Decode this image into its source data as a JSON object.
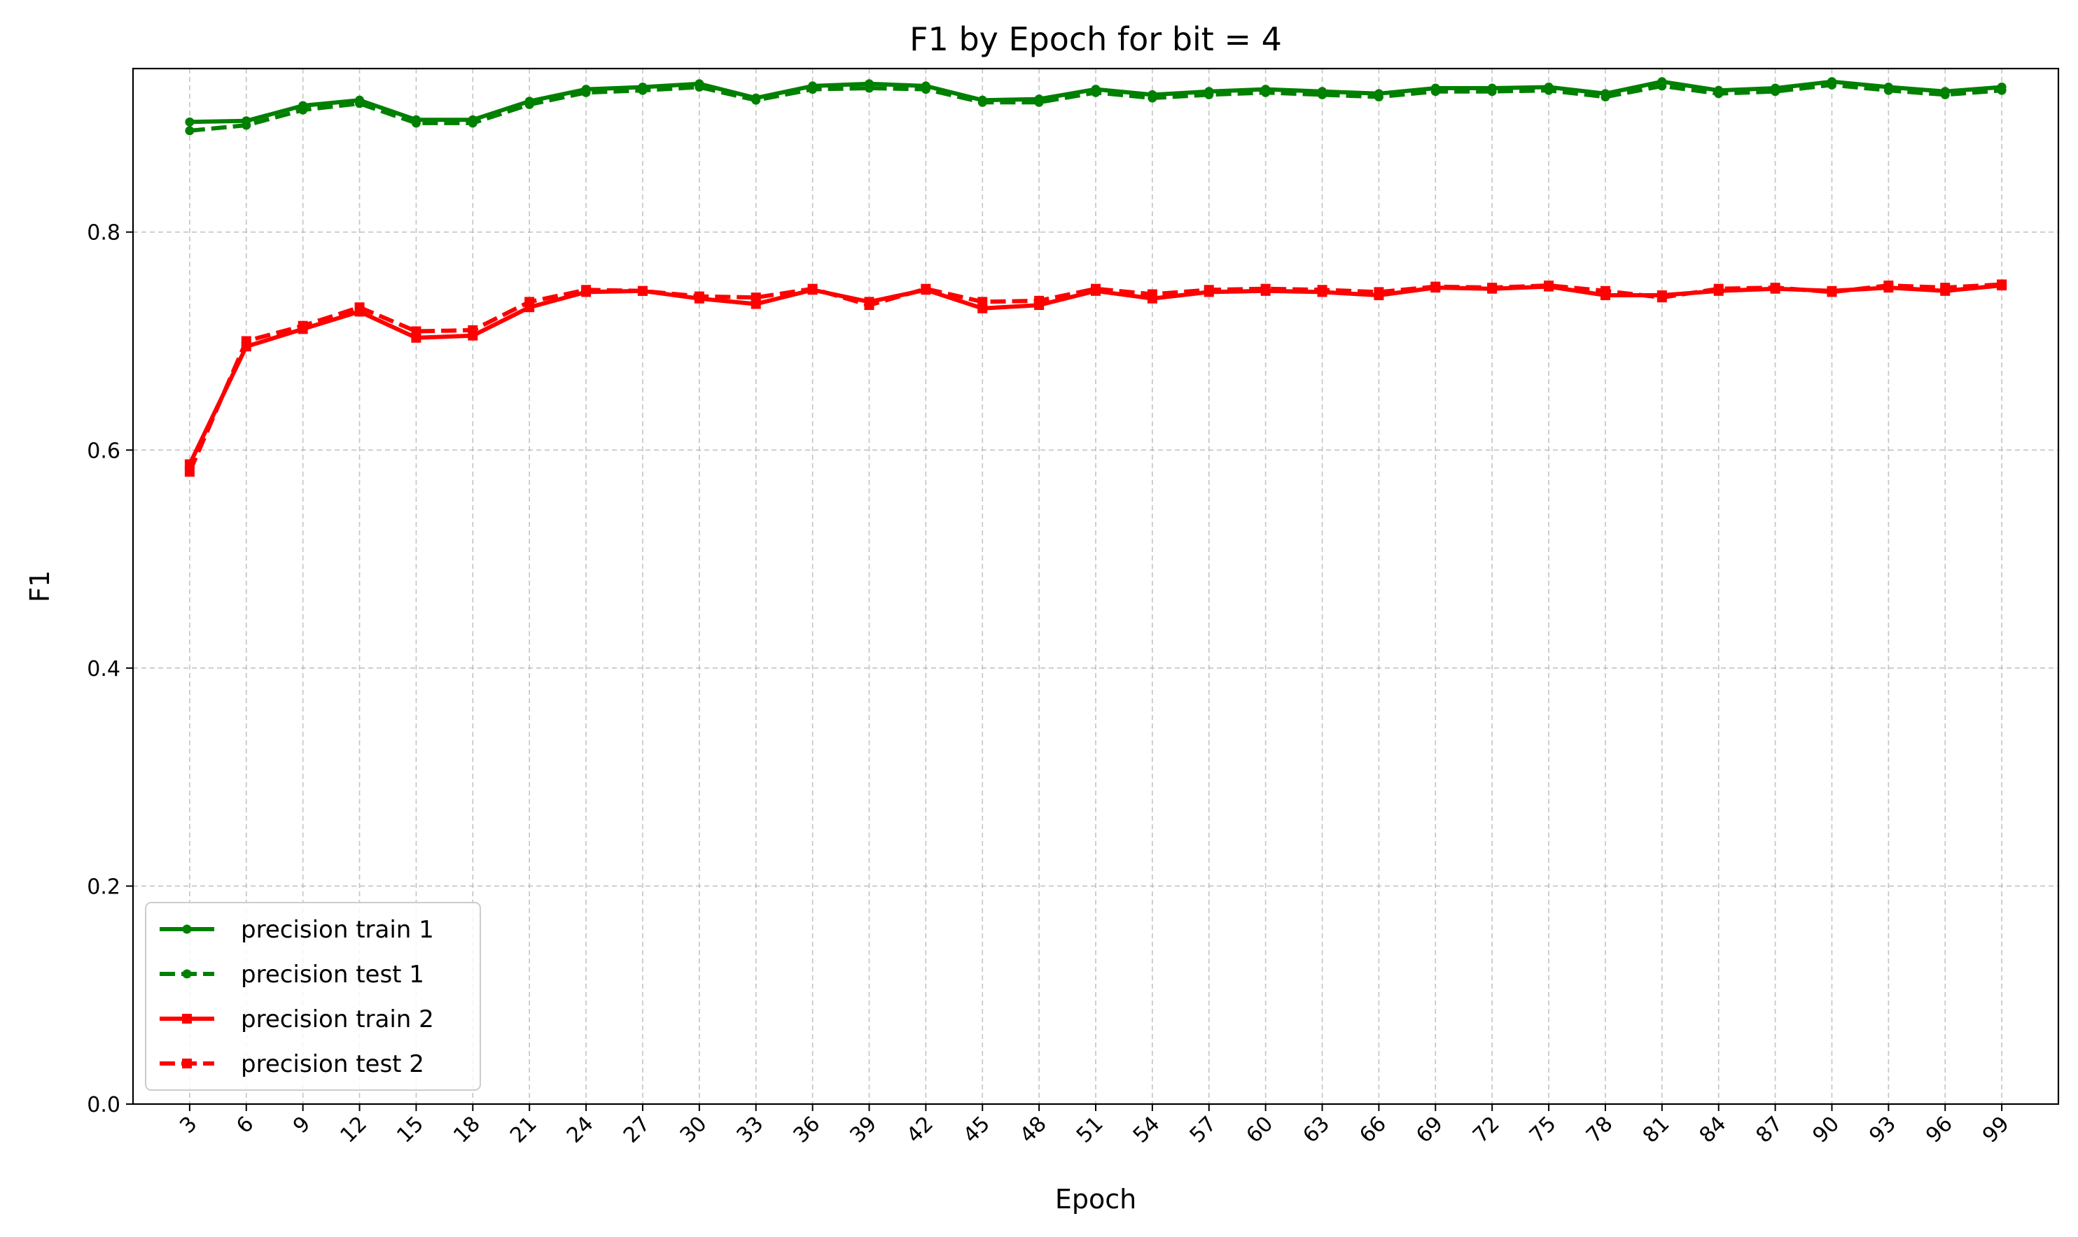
{
  "chart_data": {
    "type": "line",
    "title": "F1 by Epoch for bit = 4",
    "xlabel": "Epoch",
    "ylabel": "F1",
    "ylim": [
      0,
      0.95
    ],
    "yticks": [
      "0.0",
      "0.2",
      "0.4",
      "0.6",
      "0.8"
    ],
    "grid": true,
    "legend_position": "lower-left",
    "x": [
      3,
      6,
      9,
      12,
      15,
      18,
      21,
      24,
      27,
      30,
      33,
      36,
      39,
      42,
      45,
      48,
      51,
      54,
      57,
      60,
      63,
      66,
      69,
      72,
      75,
      78,
      81,
      84,
      87,
      90,
      93,
      96,
      99
    ],
    "series": [
      {
        "name": "precision train 1",
        "color": "#008000",
        "dash": "solid",
        "marker": "circle",
        "values": [
          0.901,
          0.902,
          0.916,
          0.921,
          0.903,
          0.903,
          0.92,
          0.931,
          0.933,
          0.936,
          0.923,
          0.934,
          0.936,
          0.934,
          0.921,
          0.922,
          0.931,
          0.926,
          0.929,
          0.931,
          0.929,
          0.927,
          0.932,
          0.932,
          0.933,
          0.927,
          0.938,
          0.93,
          0.932,
          0.938,
          0.933,
          0.929,
          0.933
        ]
      },
      {
        "name": "precision test 1",
        "color": "#008000",
        "dash": "dashed",
        "marker": "circle",
        "values": [
          0.893,
          0.898,
          0.912,
          0.918,
          0.9,
          0.9,
          0.917,
          0.928,
          0.93,
          0.933,
          0.921,
          0.931,
          0.932,
          0.931,
          0.919,
          0.919,
          0.928,
          0.923,
          0.926,
          0.928,
          0.926,
          0.924,
          0.929,
          0.929,
          0.93,
          0.924,
          0.934,
          0.927,
          0.929,
          0.935,
          0.93,
          0.926,
          0.93
        ]
      },
      {
        "name": "precision train 2",
        "color": "#ff0000",
        "dash": "solid",
        "marker": "square",
        "values": [
          0.587,
          0.695,
          0.711,
          0.727,
          0.703,
          0.705,
          0.731,
          0.745,
          0.746,
          0.739,
          0.734,
          0.747,
          0.736,
          0.747,
          0.73,
          0.733,
          0.746,
          0.739,
          0.745,
          0.746,
          0.745,
          0.742,
          0.749,
          0.748,
          0.75,
          0.742,
          0.742,
          0.746,
          0.748,
          0.746,
          0.749,
          0.746,
          0.751
        ]
      },
      {
        "name": "precision test 2",
        "color": "#ff0000",
        "dash": "dashed",
        "marker": "square",
        "values": [
          0.58,
          0.7,
          0.714,
          0.731,
          0.709,
          0.71,
          0.736,
          0.747,
          0.746,
          0.741,
          0.74,
          0.748,
          0.733,
          0.748,
          0.736,
          0.737,
          0.748,
          0.743,
          0.747,
          0.748,
          0.747,
          0.745,
          0.75,
          0.749,
          0.751,
          0.746,
          0.74,
          0.748,
          0.749,
          0.745,
          0.751,
          0.749,
          0.752
        ]
      }
    ]
  }
}
